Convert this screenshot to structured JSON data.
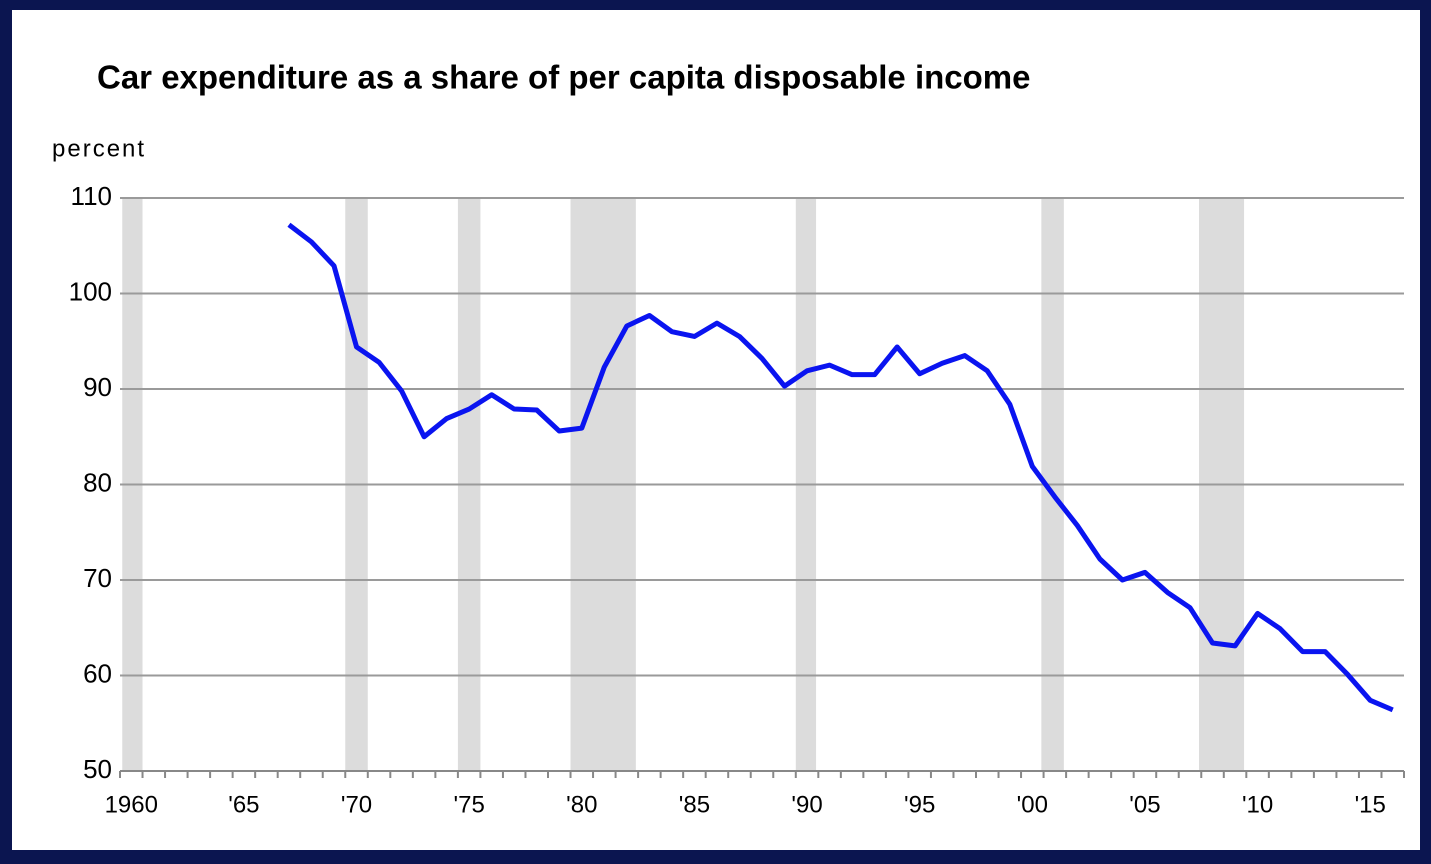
{
  "chart_data": {
    "type": "line",
    "title": "Car expenditure as a share of per capita disposable income",
    "ylabel": "percent",
    "x": [
      1967,
      1968,
      1969,
      1970,
      1971,
      1972,
      1973,
      1974,
      1975,
      1976,
      1977,
      1978,
      1979,
      1980,
      1981,
      1982,
      1983,
      1984,
      1985,
      1986,
      1987,
      1988,
      1989,
      1990,
      1991,
      1992,
      1993,
      1994,
      1995,
      1996,
      1997,
      1998,
      1999,
      2000,
      2001,
      2002,
      2003,
      2004,
      2005,
      2006,
      2007,
      2008,
      2009,
      2010,
      2011,
      2012,
      2013,
      2014,
      2015,
      2016
    ],
    "series": [
      {
        "color": "#0a14f0",
        "values": [
          107.2,
          105.4,
          102.9,
          94.4,
          92.8,
          89.8,
          85.0,
          86.9,
          87.9,
          89.4,
          87.9,
          87.8,
          85.6,
          85.9,
          92.3,
          96.6,
          97.7,
          96.0,
          95.5,
          96.9,
          95.5,
          93.2,
          90.3,
          91.9,
          92.5,
          91.5,
          91.5,
          94.4,
          91.6,
          92.7,
          93.5,
          91.9,
          88.4,
          81.9,
          78.7,
          75.7,
          72.2,
          70.0,
          70.8,
          68.7,
          67.1,
          63.4,
          63.1,
          66.5,
          64.9,
          62.5,
          62.5,
          60.1,
          57.4,
          56.4
        ]
      }
    ],
    "shaded_periods": [
      [
        1959.6,
        1960.5
      ],
      [
        1969.5,
        1970.5
      ],
      [
        1974.5,
        1975.5
      ],
      [
        1979.5,
        1982.4
      ],
      [
        1989.5,
        1990.4
      ],
      [
        2000.4,
        2001.4
      ],
      [
        2007.4,
        2009.4
      ]
    ],
    "shade_color": "#dcdcdc",
    "xlim": [
      1959.5,
      2016.5
    ],
    "xticks": [
      1960,
      {
        "value": 1965,
        "label": "'65"
      },
      {
        "value": 1970,
        "label": "'70"
      },
      {
        "value": 1975,
        "label": "'75"
      },
      {
        "value": 1980,
        "label": "'80"
      },
      {
        "value": 1985,
        "label": "'85"
      },
      {
        "value": 1990,
        "label": "'90"
      },
      {
        "value": 1995,
        "label": "'95"
      },
      {
        "value": 2000,
        "label": "'00"
      },
      {
        "value": 2005,
        "label": "'05"
      },
      {
        "value": 2010,
        "label": "'10"
      },
      {
        "value": 2015,
        "label": "'15"
      }
    ],
    "ylim": [
      50,
      110
    ],
    "yticks": [
      50,
      60,
      70,
      80,
      90,
      100,
      110
    ],
    "grid": true
  }
}
